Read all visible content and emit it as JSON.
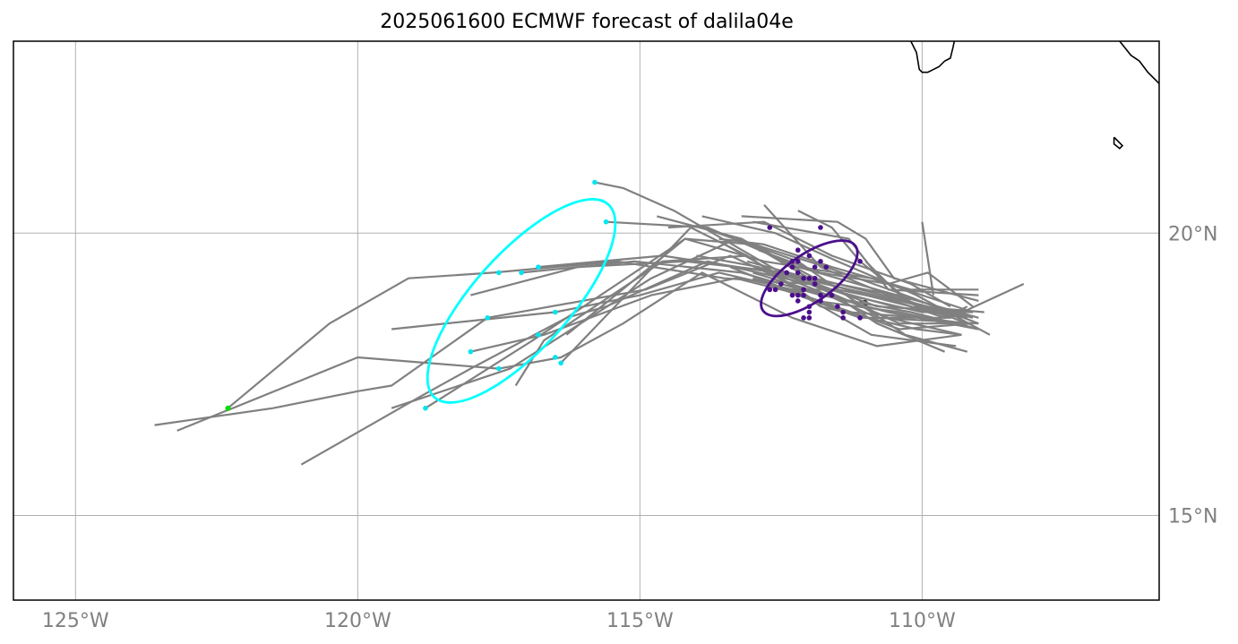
{
  "title": "2025061600 ECMWF forecast of dalila04e",
  "chart_data": {
    "type": "scatter",
    "title": "2025061600 ECMWF forecast of dalila04e",
    "xlim": [
      -126.1,
      -105.8
    ],
    "ylim": [
      13.5,
      23.4
    ],
    "grid": true,
    "x_ticks": [
      {
        "value": -125,
        "label": "125°W"
      },
      {
        "value": -120,
        "label": "120°W"
      },
      {
        "value": -115,
        "label": "115°W"
      },
      {
        "value": -110,
        "label": "110°W"
      }
    ],
    "y_ticks": [
      {
        "value": 20,
        "label": "20°N"
      },
      {
        "value": 15,
        "label": "15°N"
      }
    ],
    "colors": {
      "tracks": "#808080",
      "early_points": "#4b0f8c",
      "late_points": "#00e5f0",
      "start_point": "#00dd00",
      "early_ellipse": "#4b0f8c",
      "late_ellipse": "#00ffff",
      "coast": "#000000",
      "grid": "#b0b0b0"
    },
    "tracks": [
      [
        [
          -109.2,
          18.4
        ],
        [
          -110.5,
          18.9
        ],
        [
          -112.5,
          19.3
        ],
        [
          -114.4,
          20.4
        ],
        [
          -115.3,
          20.8
        ],
        [
          -115.8,
          20.9
        ]
      ],
      [
        [
          -109.0,
          18.5
        ],
        [
          -110.8,
          19.0
        ],
        [
          -112.2,
          19.4
        ],
        [
          -113.8,
          20.1
        ],
        [
          -115.6,
          20.2
        ]
      ],
      [
        [
          -109.1,
          18.6
        ],
        [
          -110.8,
          18.7
        ],
        [
          -112.4,
          19.3
        ],
        [
          -114.2,
          19.5
        ],
        [
          -116.1,
          19.4
        ],
        [
          -118.0,
          18.9
        ]
      ],
      [
        [
          -109.3,
          18.2
        ],
        [
          -110.6,
          18.5
        ],
        [
          -112.0,
          19.1
        ],
        [
          -113.5,
          19.2
        ],
        [
          -115.4,
          19.5
        ],
        [
          -117.6,
          19.3
        ],
        [
          -119.1,
          19.2
        ],
        [
          -120.5,
          18.4
        ],
        [
          -122.3,
          16.9
        ]
      ],
      [
        [
          -109.2,
          18.5
        ],
        [
          -110.4,
          18.8
        ],
        [
          -112.6,
          19.3
        ],
        [
          -114.6,
          19.6
        ],
        [
          -116.8,
          19.4
        ]
      ],
      [
        [
          -109.0,
          18.3
        ],
        [
          -110.2,
          18.6
        ],
        [
          -111.8,
          18.9
        ],
        [
          -113.2,
          19.3
        ],
        [
          -115.1,
          19.5
        ],
        [
          -117.1,
          19.3
        ]
      ],
      [
        [
          -109.4,
          18.0
        ],
        [
          -110.9,
          18.2
        ],
        [
          -112.3,
          19.0
        ],
        [
          -113.6,
          19.3
        ],
        [
          -115.0,
          18.9
        ],
        [
          -116.5,
          18.6
        ],
        [
          -119.4,
          18.3
        ]
      ],
      [
        [
          -109.1,
          18.4
        ],
        [
          -110.4,
          18.3
        ],
        [
          -112.1,
          18.9
        ],
        [
          -113.3,
          19.2
        ],
        [
          -114.8,
          18.9
        ],
        [
          -116.7,
          18.2
        ],
        [
          -118.0,
          17.9
        ]
      ],
      [
        [
          -109.3,
          18.2
        ],
        [
          -110.8,
          18.0
        ],
        [
          -112.3,
          18.5
        ],
        [
          -113.9,
          19.3
        ],
        [
          -115.3,
          18.4
        ],
        [
          -116.4,
          17.8
        ],
        [
          -117.5,
          17.6
        ],
        [
          -120.0,
          17.8
        ],
        [
          -123.2,
          16.5
        ]
      ],
      [
        [
          -109.0,
          18.3
        ],
        [
          -110.6,
          18.6
        ],
        [
          -112.1,
          19.0
        ],
        [
          -113.4,
          19.6
        ],
        [
          -114.9,
          19.0
        ],
        [
          -117.7,
          18.5
        ],
        [
          -119.4,
          17.3
        ],
        [
          -120.0,
          17.2
        ],
        [
          -121.5,
          16.9
        ],
        [
          -123.6,
          16.6
        ]
      ],
      [
        [
          -109.2,
          18.5
        ],
        [
          -110.5,
          18.7
        ],
        [
          -112.0,
          19.1
        ],
        [
          -113.8,
          19.5
        ],
        [
          -115.6,
          18.7
        ],
        [
          -116.3,
          18.5
        ],
        [
          -118.0,
          17.6
        ],
        [
          -118.9,
          17.1
        ],
        [
          -121.0,
          15.9
        ]
      ],
      [
        [
          -109.1,
          18.6
        ],
        [
          -110.9,
          19.2
        ],
        [
          -112.8,
          19.5
        ],
        [
          -114.2,
          19.9
        ],
        [
          -116.9,
          18.1
        ],
        [
          -118.8,
          16.9
        ]
      ],
      [
        [
          -109.0,
          18.4
        ],
        [
          -110.3,
          18.9
        ],
        [
          -111.7,
          19.4
        ],
        [
          -113.3,
          19.9
        ],
        [
          -114.8,
          19.2
        ],
        [
          -117.3,
          17.6
        ],
        [
          -119.4,
          16.9
        ]
      ],
      [
        [
          -109.3,
          18.2
        ],
        [
          -110.1,
          18.3
        ],
        [
          -111.8,
          18.7
        ],
        [
          -113.1,
          19.6
        ],
        [
          -114.6,
          19.5
        ],
        [
          -116.7,
          18.1
        ],
        [
          -117.2,
          17.3
        ]
      ],
      [
        [
          -109.1,
          18.5
        ],
        [
          -110.7,
          18.9
        ],
        [
          -111.9,
          19.2
        ],
        [
          -113.0,
          19.8
        ],
        [
          -114.2,
          19.9
        ],
        [
          -116.3,
          18.2
        ]
      ],
      [
        [
          -109.5,
          18.7
        ],
        [
          -110.2,
          19.1
        ],
        [
          -111.6,
          19.6
        ],
        [
          -112.8,
          20.2
        ],
        [
          -114.5,
          20.1
        ]
      ],
      [
        [
          -109.6,
          17.9
        ],
        [
          -110.8,
          18.4
        ],
        [
          -112.0,
          19.2
        ],
        [
          -113.2,
          19.9
        ],
        [
          -114.7,
          20.3
        ]
      ],
      [
        [
          -109.0,
          18.3
        ],
        [
          -110.4,
          18.6
        ],
        [
          -111.9,
          18.8
        ],
        [
          -113.1,
          19.6
        ],
        [
          -114.1,
          20.1
        ],
        [
          -116.4,
          17.7
        ]
      ],
      [
        [
          -108.8,
          18.2
        ],
        [
          -110.1,
          18.9
        ],
        [
          -111.5,
          19.5
        ],
        [
          -112.6,
          20.0
        ],
        [
          -113.9,
          20.3
        ]
      ],
      [
        [
          -108.2,
          19.1
        ],
        [
          -109.5,
          18.5
        ],
        [
          -110.6,
          18.9
        ],
        [
          -111.8,
          19.4
        ],
        [
          -112.8,
          20.5
        ]
      ],
      [
        [
          -108.9,
          18.6
        ],
        [
          -110.1,
          18.7
        ],
        [
          -111.1,
          19.5
        ],
        [
          -111.6,
          20.1
        ],
        [
          -112.2,
          20.4
        ]
      ],
      [
        [
          -109.0,
          18.8
        ],
        [
          -110.5,
          19.2
        ],
        [
          -111.0,
          19.9
        ],
        [
          -111.5,
          20.2
        ],
        [
          -113.2,
          20.3
        ]
      ],
      [
        [
          -109.0,
          18.9
        ],
        [
          -110.6,
          19.0
        ],
        [
          -111.3,
          19.9
        ],
        [
          -113.0,
          20.2
        ]
      ],
      [
        [
          -109.2,
          17.9
        ],
        [
          -110.3,
          18.2
        ],
        [
          -111.2,
          18.8
        ],
        [
          -112.2,
          19.5
        ],
        [
          -113.9,
          20.1
        ]
      ],
      [
        [
          -109.0,
          18.4
        ],
        [
          -110.8,
          18.5
        ],
        [
          -111.9,
          19.0
        ],
        [
          -112.9,
          19.4
        ],
        [
          -114.0,
          19.6
        ]
      ],
      [
        [
          -109.1,
          18.7
        ],
        [
          -109.9,
          19.3
        ],
        [
          -110.6,
          19.1
        ],
        [
          -111.8,
          19.3
        ],
        [
          -112.9,
          19.7
        ]
      ],
      [
        [
          -109.0,
          19.0
        ],
        [
          -110.2,
          19.0
        ],
        [
          -111.6,
          19.4
        ],
        [
          -112.8,
          19.8
        ],
        [
          -113.6,
          19.9
        ]
      ],
      [
        [
          -109.1,
          18.6
        ],
        [
          -110.0,
          18.6
        ],
        [
          -111.3,
          18.9
        ],
        [
          -112.6,
          19.3
        ],
        [
          -113.5,
          19.8
        ]
      ],
      [
        [
          -109.2,
          18.4
        ],
        [
          -110.0,
          18.5
        ],
        [
          -111.3,
          18.6
        ],
        [
          -112.4,
          19.0
        ],
        [
          -113.4,
          19.4
        ]
      ],
      [
        [
          -109.3,
          18.5
        ],
        [
          -110.2,
          18.7
        ],
        [
          -111.0,
          18.9
        ],
        [
          -112.0,
          19.2
        ],
        [
          -113.1,
          19.5
        ]
      ],
      [
        [
          -109.5,
          18.5
        ],
        [
          -110.2,
          18.5
        ],
        [
          -111.1,
          18.5
        ],
        [
          -112.2,
          18.9
        ],
        [
          -113.0,
          19.2
        ]
      ],
      [
        [
          -109.3,
          18.4
        ],
        [
          -110.4,
          18.4
        ],
        [
          -111.3,
          18.8
        ],
        [
          -112.0,
          19.0
        ],
        [
          -113.0,
          19.3
        ]
      ],
      [
        [
          -109.8,
          18.9
        ],
        [
          -110.0,
          20.2
        ]
      ],
      [
        [
          -109.7,
          18.6
        ],
        [
          -110.3,
          18.8
        ],
        [
          -111.0,
          19.5
        ]
      ],
      [
        [
          -109.2,
          18.7
        ],
        [
          -109.6,
          18.5
        ],
        [
          -110.5,
          18.8
        ],
        [
          -111.5,
          19.0
        ],
        [
          -112.5,
          19.0
        ]
      ]
    ],
    "early_points": [
      [
        -112.7,
        20.1
      ],
      [
        -111.8,
        20.1
      ],
      [
        -111.1,
        19.5
      ],
      [
        -112.2,
        19.7
      ],
      [
        -112.0,
        19.6
      ],
      [
        -111.8,
        19.5
      ],
      [
        -112.3,
        19.5
      ],
      [
        -112.2,
        19.5
      ],
      [
        -111.7,
        19.4
      ],
      [
        -112.3,
        19.4
      ],
      [
        -112.2,
        19.3
      ],
      [
        -112.4,
        19.3
      ],
      [
        -111.9,
        19.4
      ],
      [
        -112.1,
        19.2
      ],
      [
        -112.0,
        19.2
      ],
      [
        -111.9,
        19.2
      ],
      [
        -111.9,
        19.1
      ],
      [
        -112.5,
        19.1
      ],
      [
        -112.1,
        19.0
      ],
      [
        -111.8,
        18.9
      ],
      [
        -111.6,
        18.9
      ],
      [
        -112.3,
        18.9
      ],
      [
        -112.2,
        18.9
      ],
      [
        -112.1,
        18.9
      ],
      [
        -112.7,
        19.0
      ],
      [
        -112.6,
        19.0
      ],
      [
        -112.2,
        18.8
      ],
      [
        -111.8,
        18.8
      ],
      [
        -111.5,
        18.7
      ],
      [
        -112.0,
        18.7
      ],
      [
        -112.0,
        18.6
      ],
      [
        -111.4,
        18.6
      ],
      [
        -111.4,
        18.5
      ],
      [
        -111.1,
        18.5
      ],
      [
        -112.0,
        18.5
      ],
      [
        -112.1,
        18.5
      ]
    ],
    "late_points": [
      [
        -115.8,
        20.9
      ],
      [
        -115.6,
        20.2
      ],
      [
        -116.8,
        19.4
      ],
      [
        -117.1,
        19.3
      ],
      [
        -117.5,
        19.3
      ],
      [
        -116.5,
        18.6
      ],
      [
        -117.7,
        18.5
      ],
      [
        -116.8,
        18.2
      ],
      [
        -118.0,
        17.9
      ],
      [
        -116.5,
        17.8
      ],
      [
        -116.4,
        17.7
      ],
      [
        -117.5,
        17.6
      ],
      [
        -118.8,
        16.9
      ]
    ],
    "start_point": [
      -122.3,
      16.9
    ],
    "early_ellipse": {
      "center": [
        -112.0,
        19.2
      ],
      "rx": 1.0,
      "ry": 0.42,
      "angle": -35
    },
    "late_ellipse": {
      "center": [
        -117.1,
        18.8
      ],
      "rx": 2.3,
      "ry": 0.85,
      "angle": -48
    },
    "coastlines": [
      [
        [
          -110.2,
          23.4
        ],
        [
          -110.1,
          23.2
        ],
        [
          -110.05,
          22.9
        ],
        [
          -110.0,
          22.85
        ],
        [
          -109.9,
          22.85
        ],
        [
          -109.7,
          22.95
        ],
        [
          -109.6,
          23.05
        ],
        [
          -109.5,
          23.1
        ],
        [
          -109.45,
          23.3
        ],
        [
          -109.43,
          23.4
        ]
      ],
      [
        [
          -106.5,
          23.4
        ],
        [
          -106.3,
          23.15
        ],
        [
          -106.15,
          23.05
        ],
        [
          -106.0,
          22.85
        ],
        [
          -105.8,
          22.65
        ]
      ],
      [
        [
          -106.6,
          21.7
        ],
        [
          -106.5,
          21.6
        ],
        [
          -106.45,
          21.55
        ],
        [
          -106.5,
          21.5
        ],
        [
          -106.6,
          21.58
        ],
        [
          -106.6,
          21.7
        ]
      ],
      [
        [
          -111.1,
          18.8
        ],
        [
          -111.0,
          18.72
        ],
        [
          -110.95,
          18.75
        ],
        [
          -111.0,
          18.8
        ],
        [
          -111.1,
          18.8
        ]
      ]
    ]
  }
}
